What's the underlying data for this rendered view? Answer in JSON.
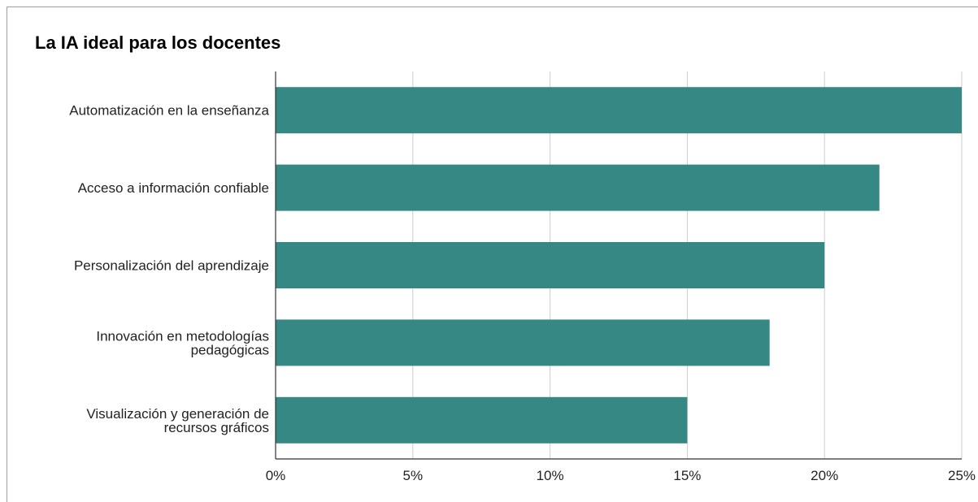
{
  "chart_data": {
    "type": "bar",
    "orientation": "horizontal",
    "title": "La IA ideal para los docentes",
    "xlabel": "",
    "ylabel": "",
    "categories": [
      [
        "Automatización en la enseñanza"
      ],
      [
        "Acceso a información confiable"
      ],
      [
        "Personalización del aprendizaje"
      ],
      [
        "Innovación en metodologías",
        "pedagógicas"
      ],
      [
        "Visualización y generación de",
        "recursos gráficos"
      ]
    ],
    "values": [
      25,
      22,
      20,
      18,
      15
    ],
    "value_format": "percent",
    "xlim": [
      0,
      25
    ],
    "xticks": [
      0,
      5,
      10,
      15,
      20,
      25
    ],
    "xtick_labels": [
      "0%",
      "5%",
      "10%",
      "15%",
      "20%",
      "25%"
    ],
    "grid": "vertical",
    "legend": "none",
    "bar_color": "#358884",
    "grid_color": "#cccccc",
    "axis_color": "#333333"
  }
}
